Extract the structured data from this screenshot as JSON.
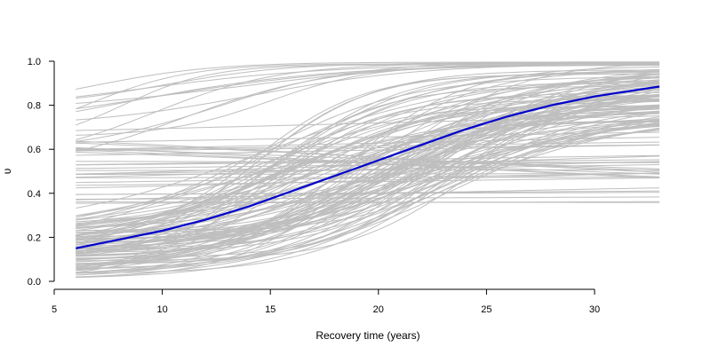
{
  "chart_data": {
    "type": "line",
    "title": "",
    "xlabel": "Recovery time (years)",
    "ylabel": "υ",
    "xlim": [
      5,
      33
    ],
    "ylim": [
      0,
      1
    ],
    "x_ticks": [
      5,
      10,
      15,
      20,
      25,
      30
    ],
    "x_tick_labels": [
      "5",
      "10",
      "15",
      "20",
      "25",
      "30"
    ],
    "y_ticks": [
      0.0,
      0.2,
      0.4,
      0.6,
      0.8,
      1.0
    ],
    "y_tick_labels": [
      "0.0",
      "0.2",
      "0.4",
      "0.6",
      "0.8",
      "1.0"
    ],
    "x_range_of_curves": [
      6,
      33
    ],
    "grid": false,
    "legend": "none",
    "colors": {
      "background_curves": "#bebebe",
      "mean_curve": "#0000cd",
      "axis": "#000000"
    },
    "background_curves": {
      "description_count": 150,
      "shape": "logistic-like trajectories in recovery time, many overlapping gray lines"
    },
    "series": [
      {
        "role": "mean",
        "x": [
          6,
          8,
          10,
          12,
          14,
          16,
          18,
          20,
          22,
          24,
          26,
          28,
          30,
          32,
          33
        ],
        "values": [
          0.15,
          0.19,
          0.23,
          0.28,
          0.34,
          0.41,
          0.48,
          0.55,
          0.62,
          0.69,
          0.75,
          0.8,
          0.84,
          0.87,
          0.885
        ]
      }
    ]
  }
}
